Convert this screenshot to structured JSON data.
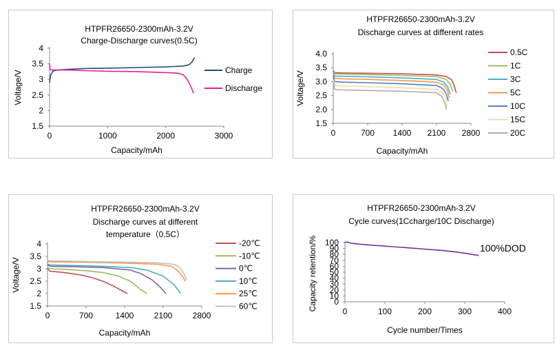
{
  "chart_data": [
    {
      "type": "line",
      "title": "HTPFR26650-2300mAh-3.2V",
      "subtitle": "Charge-Discharge curves(0.5C)",
      "xlabel": "Capacity/mAh",
      "ylabel": "Voltage/V",
      "xlim": [
        0,
        3000
      ],
      "ylim": [
        1.5,
        4
      ],
      "x_ticks": [
        "0",
        "1000",
        "2000",
        "3000"
      ],
      "y_ticks": [
        "1.5",
        "2",
        "2.5",
        "3",
        "3.5",
        "4"
      ],
      "legend_position": "right",
      "grid": false,
      "series": [
        {
          "name": "Charge",
          "color": "#1f4e79",
          "x": [
            0,
            20,
            60,
            150,
            300,
            600,
            1000,
            1500,
            2000,
            2300,
            2400,
            2450,
            2480,
            2500
          ],
          "y": [
            2.9,
            3.15,
            3.27,
            3.3,
            3.32,
            3.35,
            3.36,
            3.38,
            3.4,
            3.43,
            3.47,
            3.55,
            3.65,
            3.7
          ]
        },
        {
          "name": "Discharge",
          "color": "#e91e9c",
          "x": [
            0,
            10,
            30,
            100,
            300,
            600,
            1000,
            1500,
            2000,
            2200,
            2300,
            2350,
            2400,
            2450,
            2480
          ],
          "y": [
            3.5,
            3.33,
            3.3,
            3.3,
            3.3,
            3.28,
            3.26,
            3.25,
            3.22,
            3.2,
            3.15,
            3.05,
            2.9,
            2.7,
            2.55
          ]
        }
      ]
    },
    {
      "type": "line",
      "title": "HTPFR26650-2300mAh-3.2V",
      "subtitle": "Discharge curves  at  different rates",
      "xlabel": "Capacity/mAh",
      "ylabel": "Voltage/V",
      "xlim": [
        0,
        2800
      ],
      "ylim": [
        1.5,
        4.0
      ],
      "x_ticks": [
        "0",
        "700",
        "1400",
        "2100",
        "2800"
      ],
      "y_ticks": [
        "1.5",
        "2.0",
        "2.5",
        "3.0",
        "3.5",
        "4.0"
      ],
      "legend_position": "right",
      "grid": false,
      "series": [
        {
          "name": "0.5C",
          "color": "#c0504d",
          "x": [
            0,
            30,
            200,
            700,
            1400,
            2100,
            2300,
            2400,
            2450,
            2500
          ],
          "y": [
            3.4,
            3.32,
            3.31,
            3.3,
            3.28,
            3.24,
            3.18,
            3.08,
            2.9,
            2.6
          ]
        },
        {
          "name": "1C",
          "color": "#9bbb59",
          "x": [
            0,
            30,
            200,
            700,
            1400,
            2100,
            2300,
            2380,
            2430
          ],
          "y": [
            3.35,
            3.28,
            3.27,
            3.25,
            3.22,
            3.18,
            3.08,
            2.9,
            2.65
          ]
        },
        {
          "name": "3C",
          "color": "#4bacc6",
          "x": [
            0,
            30,
            200,
            700,
            1400,
            2100,
            2250,
            2330,
            2380
          ],
          "y": [
            3.3,
            3.2,
            3.19,
            3.17,
            3.13,
            3.08,
            2.98,
            2.8,
            2.55
          ]
        },
        {
          "name": "5C",
          "color": "#f79646",
          "x": [
            0,
            30,
            200,
            700,
            1400,
            2100,
            2250,
            2320,
            2360
          ],
          "y": [
            3.25,
            3.12,
            3.1,
            3.08,
            3.04,
            2.98,
            2.88,
            2.7,
            2.4
          ]
        },
        {
          "name": "10C",
          "color": "#4f81bd",
          "x": [
            0,
            30,
            200,
            700,
            1400,
            2100,
            2230,
            2300,
            2340
          ],
          "y": [
            3.2,
            3.0,
            2.98,
            2.96,
            2.92,
            2.86,
            2.75,
            2.55,
            2.3
          ]
        },
        {
          "name": "15C",
          "color": "#f2dcaa",
          "x": [
            0,
            30,
            200,
            700,
            1400,
            2100,
            2220,
            2290,
            2320
          ],
          "y": [
            3.1,
            2.86,
            2.84,
            2.82,
            2.78,
            2.72,
            2.6,
            2.4,
            2.1
          ]
        },
        {
          "name": "20C",
          "color": "#b7a7a7",
          "x": [
            0,
            30,
            200,
            700,
            1400,
            2100,
            2200,
            2270,
            2300
          ],
          "y": [
            3.0,
            2.72,
            2.7,
            2.68,
            2.65,
            2.6,
            2.48,
            2.25,
            2.0
          ]
        }
      ]
    },
    {
      "type": "line",
      "title": "HTPFR26650-2300mAh-3.2V",
      "subtitle_lines": [
        "Discharge curves at different",
        "temperature（0.5C）"
      ],
      "xlabel": "Capacity/mAh",
      "ylabel": "Voltage/V",
      "xlim": [
        0,
        2800
      ],
      "ylim": [
        1.5,
        4
      ],
      "x_ticks": [
        "0",
        "700",
        "1400",
        "2100",
        "2800"
      ],
      "y_ticks": [
        "1.5",
        "2",
        "2.5",
        "3",
        "3.5",
        "4"
      ],
      "legend_position": "right",
      "grid": false,
      "series": [
        {
          "name": "-20℃",
          "color": "#c0504d",
          "x": [
            0,
            50,
            300,
            600,
            800,
            1000,
            1200,
            1350,
            1450
          ],
          "y": [
            3.0,
            2.9,
            2.85,
            2.75,
            2.65,
            2.5,
            2.3,
            2.12,
            2.0
          ]
        },
        {
          "name": "-10℃",
          "color": "#9bbb59",
          "x": [
            0,
            50,
            300,
            700,
            1000,
            1300,
            1500,
            1700,
            1800
          ],
          "y": [
            3.05,
            3.0,
            2.98,
            2.92,
            2.85,
            2.7,
            2.5,
            2.15,
            2.0
          ]
        },
        {
          "name": "0℃",
          "color": "#8064a2",
          "x": [
            0,
            50,
            500,
            1000,
            1500,
            1700,
            1900,
            2050,
            2150
          ],
          "y": [
            3.15,
            3.1,
            3.08,
            3.05,
            2.95,
            2.8,
            2.55,
            2.25,
            2.0
          ]
        },
        {
          "name": "10℃",
          "color": "#4bacc6",
          "x": [
            0,
            50,
            500,
            1000,
            1500,
            1800,
            2100,
            2300,
            2420
          ],
          "y": [
            3.2,
            3.15,
            3.13,
            3.1,
            3.05,
            2.95,
            2.7,
            2.35,
            2.0
          ]
        },
        {
          "name": "25℃",
          "color": "#f79646",
          "x": [
            0,
            50,
            500,
            1000,
            1500,
            2000,
            2250,
            2380,
            2450,
            2500
          ],
          "y": [
            3.3,
            3.28,
            3.27,
            3.25,
            3.22,
            3.18,
            3.1,
            2.9,
            2.7,
            2.5
          ]
        },
        {
          "name": "60℃",
          "color": "#c0c0c0",
          "x": [
            0,
            50,
            500,
            1000,
            1500,
            2000,
            2300,
            2400,
            2480,
            2520
          ],
          "y": [
            3.35,
            3.32,
            3.3,
            3.28,
            3.26,
            3.24,
            3.18,
            3.05,
            2.8,
            2.55
          ]
        }
      ]
    },
    {
      "type": "line",
      "title": "HTPFR26650-2300mAh-3.2V",
      "subtitle": "Cycle curves(1Ccharge/10C Discharge)",
      "xlabel": "Cycle number/Times",
      "ylabel": "Capacity retention/%",
      "xlim": [
        0,
        400
      ],
      "ylim": [
        0,
        100
      ],
      "x_ticks": [
        "0",
        "100",
        "200",
        "300",
        "400"
      ],
      "y_ticks": [
        "0",
        "10",
        "20",
        "30",
        "40",
        "50",
        "60",
        "70",
        "80",
        "90",
        "100"
      ],
      "grid": false,
      "annotation": "100%DOD",
      "series": [
        {
          "name": "",
          "color": "#7030a0",
          "x": [
            0,
            5,
            15,
            40,
            80,
            120,
            160,
            200,
            240,
            280,
            310,
            335
          ],
          "y": [
            100,
            101,
            99,
            97,
            95,
            93,
            91,
            89,
            87,
            84,
            81,
            78
          ]
        }
      ]
    }
  ]
}
